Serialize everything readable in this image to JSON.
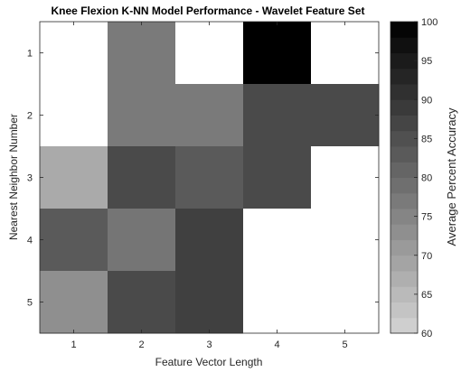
{
  "chart_data": {
    "type": "heatmap",
    "title": "Knee Flexion K-NN Model Performance - Wavelet Feature Set",
    "xlabel": "Feature Vector Length",
    "ylabel": "Nearest Neighbor Number",
    "x": [
      "1",
      "2",
      "3",
      "4",
      "5"
    ],
    "y": [
      "1",
      "2",
      "3",
      "4",
      "5"
    ],
    "values": [
      [
        null,
        77,
        null,
        100,
        null
      ],
      [
        null,
        77,
        77,
        86,
        86
      ],
      [
        68,
        86,
        83,
        86,
        null
      ],
      [
        83,
        78,
        88,
        null,
        null
      ],
      [
        73,
        86,
        88,
        null,
        null
      ]
    ],
    "colorbar": {
      "label": "Average Percent Accuracy",
      "range": [
        60,
        100
      ],
      "ticks": [
        "60",
        "65",
        "70",
        "75",
        "80",
        "85",
        "90",
        "95",
        "100"
      ],
      "low_color": "#d4d4d4",
      "high_color": "#000000",
      "nan_color": "#ffffff"
    },
    "grid": false
  }
}
